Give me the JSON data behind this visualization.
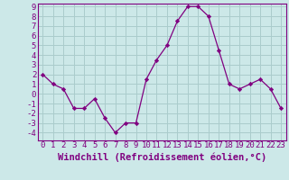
{
  "x": [
    0,
    1,
    2,
    3,
    4,
    5,
    6,
    7,
    8,
    9,
    10,
    11,
    12,
    13,
    14,
    15,
    16,
    17,
    18,
    19,
    20,
    21,
    22,
    23
  ],
  "y": [
    2,
    1,
    0.5,
    -1.5,
    -1.5,
    -0.5,
    -2.5,
    -4,
    -3,
    -3,
    1.5,
    3.5,
    5,
    7.5,
    9,
    9,
    8,
    4.5,
    1,
    0.5,
    1,
    1.5,
    0.5,
    -1.5
  ],
  "line_color": "#800080",
  "marker_color": "#800080",
  "bg_color": "#cce8e8",
  "grid_color": "#aacccc",
  "axis_color": "#800080",
  "tick_color": "#800080",
  "border_color": "#800080",
  "xlabel": "Windchill (Refroidissement éolien,°C)",
  "xlabel_color": "#800080",
  "ylim": [
    -4.8,
    9.3
  ],
  "xlim": [
    -0.5,
    23.5
  ],
  "yticks": [
    -4,
    -3,
    -2,
    -1,
    0,
    1,
    2,
    3,
    4,
    5,
    6,
    7,
    8,
    9
  ],
  "xticks": [
    0,
    1,
    2,
    3,
    4,
    5,
    6,
    7,
    8,
    9,
    10,
    11,
    12,
    13,
    14,
    15,
    16,
    17,
    18,
    19,
    20,
    21,
    22,
    23
  ],
  "font_size": 6.5,
  "label_font_size": 7.5
}
